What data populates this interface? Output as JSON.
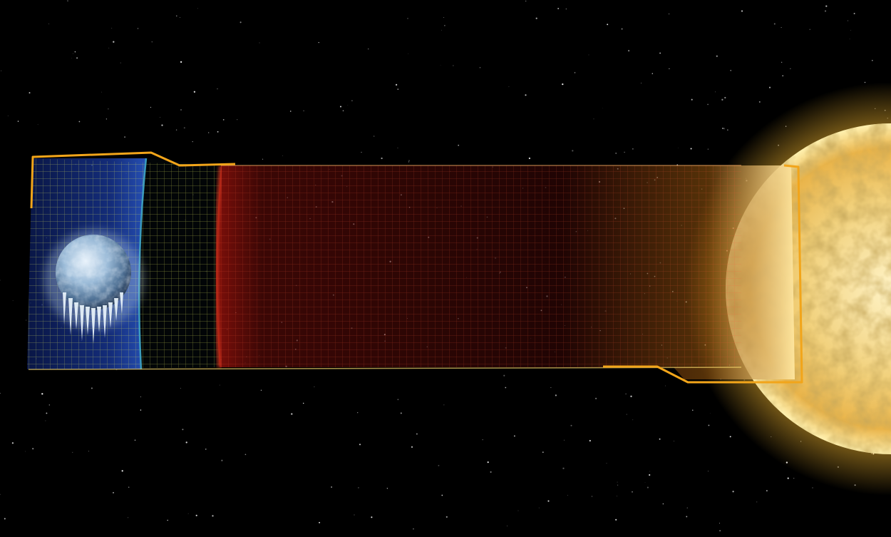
{
  "scene": {
    "subjects": [
      "frozen-planet",
      "sun",
      "habitable-zone-grid"
    ],
    "colors": {
      "space": "#000000",
      "frame_accent": "#f2a51a",
      "cold_zone": "#1a3a8f",
      "hot_zone": "#7a0f0a",
      "sun_core": "#fff6d0",
      "sun_glow": "#f5c542",
      "planet_ice": "#b9d3ea"
    }
  }
}
